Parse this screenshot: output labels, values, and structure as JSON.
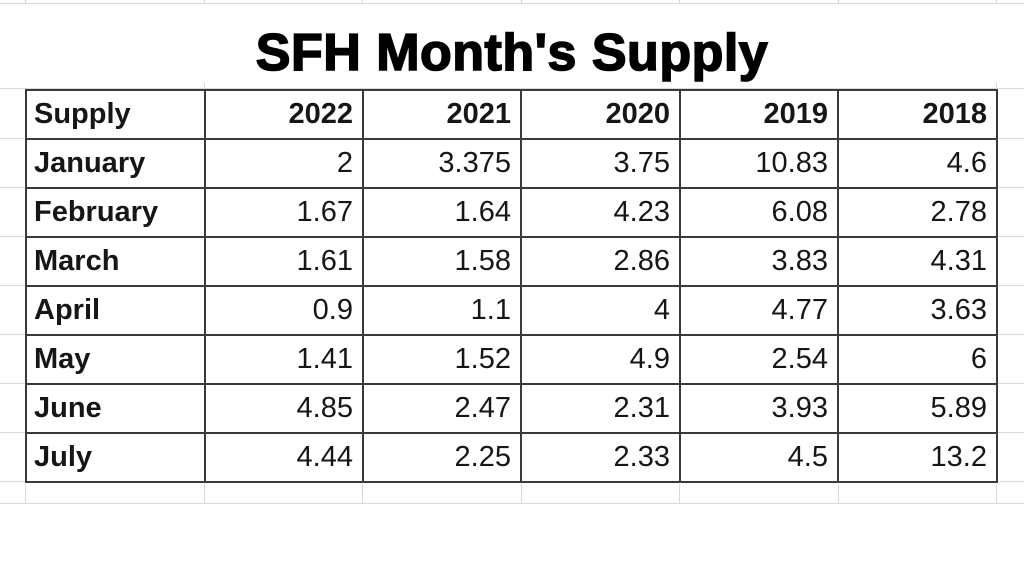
{
  "title": "SFH Month's Supply",
  "table": {
    "columns": [
      "Supply",
      "2022",
      "2021",
      "2020",
      "2019",
      "2018"
    ],
    "rows": [
      {
        "label": "January",
        "values": [
          "2",
          "3.375",
          "3.75",
          "10.83",
          "4.6"
        ]
      },
      {
        "label": "February",
        "values": [
          "1.67",
          "1.64",
          "4.23",
          "6.08",
          "2.78"
        ]
      },
      {
        "label": "March",
        "values": [
          "1.61",
          "1.58",
          "2.86",
          "3.83",
          "4.31"
        ]
      },
      {
        "label": "April",
        "values": [
          "0.9",
          "1.1",
          "4",
          "4.77",
          "3.63"
        ]
      },
      {
        "label": "May",
        "values": [
          "1.41",
          "1.52",
          "4.9",
          "2.54",
          "6"
        ]
      },
      {
        "label": "June",
        "values": [
          "4.85",
          "2.47",
          "2.31",
          "3.93",
          "5.89"
        ]
      },
      {
        "label": "July",
        "values": [
          "4.44",
          "2.25",
          "2.33",
          "4.5",
          "13.2"
        ]
      }
    ]
  },
  "chart_data": {
    "type": "table",
    "title": "SFH Month's Supply",
    "columns": [
      "Supply",
      "2022",
      "2021",
      "2020",
      "2019",
      "2018"
    ],
    "categories": [
      "January",
      "February",
      "March",
      "April",
      "May",
      "June",
      "July"
    ],
    "series": [
      {
        "name": "2022",
        "values": [
          2,
          1.67,
          1.61,
          0.9,
          1.41,
          4.85,
          4.44
        ]
      },
      {
        "name": "2021",
        "values": [
          3.375,
          1.64,
          1.58,
          1.1,
          1.52,
          2.47,
          2.25
        ]
      },
      {
        "name": "2020",
        "values": [
          3.75,
          4.23,
          2.86,
          4,
          4.9,
          2.31,
          2.33
        ]
      },
      {
        "name": "2019",
        "values": [
          10.83,
          6.08,
          3.83,
          4.77,
          2.54,
          3.93,
          4.5
        ]
      },
      {
        "name": "2018",
        "values": [
          4.6,
          2.78,
          4.31,
          3.63,
          6,
          5.89,
          13.2
        ]
      }
    ],
    "layout": {
      "grid": "faint spreadsheet gridlines",
      "legend_position": "none"
    }
  },
  "colors": {
    "background": "#ffffff",
    "table_border": "#3a3a3a",
    "gridline": "#d9d9d9",
    "text": "#161616"
  }
}
